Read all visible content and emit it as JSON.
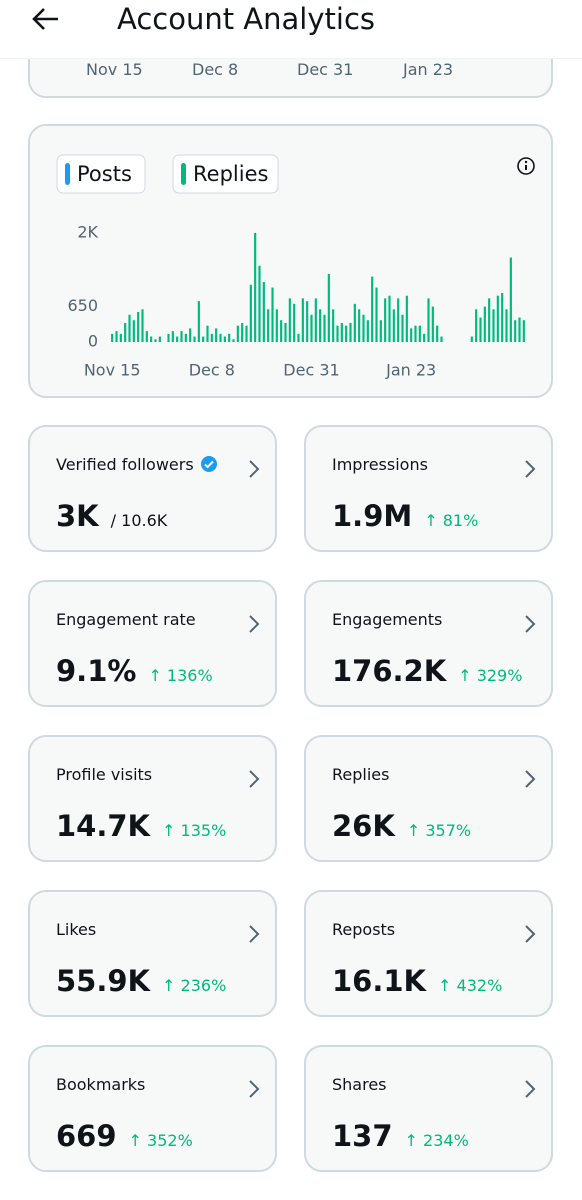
{
  "header": {
    "title": "Account Analytics"
  },
  "previous_chart": {
    "x_labels": [
      "Nov 15",
      "Dec 8",
      "Dec 31",
      "Jan 23"
    ]
  },
  "chart_data": {
    "type": "bar",
    "stacked": true,
    "categories": [
      "Nov 15",
      null,
      null,
      null,
      null,
      null,
      null,
      null,
      null,
      null,
      null,
      null,
      null,
      null,
      null,
      null,
      null,
      null,
      null,
      null,
      null,
      null,
      null,
      "Dec 8",
      null,
      null,
      null,
      null,
      null,
      null,
      null,
      null,
      null,
      null,
      null,
      null,
      null,
      null,
      null,
      null,
      null,
      null,
      null,
      null,
      null,
      null,
      "Dec 31",
      null,
      null,
      null,
      null,
      null,
      null,
      null,
      null,
      null,
      null,
      null,
      null,
      null,
      null,
      null,
      null,
      null,
      null,
      null,
      null,
      null,
      null,
      "Jan 23",
      null,
      null,
      null,
      null,
      null,
      null,
      null,
      null,
      null,
      null,
      null,
      null,
      null,
      null,
      null,
      null,
      null,
      null,
      null,
      null,
      null,
      null,
      null,
      null,
      null,
      null
    ],
    "series": [
      {
        "name": "Posts",
        "color": "#1d9bf0",
        "values": [
          0,
          0,
          0,
          0,
          0,
          0,
          0,
          0,
          0,
          0,
          0,
          0,
          0,
          0,
          0,
          0,
          0,
          0,
          0,
          0,
          0,
          0,
          0,
          0,
          0,
          0,
          0,
          0,
          0,
          0,
          0,
          0,
          0,
          0,
          0,
          0,
          0,
          0,
          0,
          0,
          0,
          0,
          0,
          0,
          0,
          0,
          0,
          0,
          0,
          0,
          0,
          0,
          0,
          0,
          0,
          0,
          0,
          0,
          0,
          0,
          0,
          0,
          0,
          0,
          0,
          0,
          0,
          0,
          0,
          0,
          0,
          0,
          0,
          0,
          0,
          0,
          0,
          0,
          0,
          0,
          0,
          0,
          0,
          0,
          0,
          0,
          0,
          0,
          0,
          0,
          0,
          0,
          0,
          0,
          0,
          0
        ]
      },
      {
        "name": "Replies",
        "color": "#00ba7c",
        "values": [
          150,
          200,
          150,
          350,
          500,
          400,
          550,
          600,
          200,
          100,
          50,
          100,
          0,
          150,
          200,
          100,
          200,
          150,
          250,
          100,
          750,
          100,
          300,
          150,
          250,
          150,
          100,
          150,
          50,
          300,
          350,
          300,
          1050,
          2000,
          1400,
          1100,
          600,
          1000,
          600,
          400,
          350,
          800,
          700,
          150,
          800,
          750,
          500,
          800,
          600,
          500,
          1250,
          600,
          300,
          350,
          300,
          350,
          700,
          600,
          500,
          400,
          1200,
          1000,
          400,
          800,
          850,
          600,
          800,
          500,
          850,
          250,
          300,
          300,
          150,
          800,
          650,
          300,
          100,
          0,
          0,
          0,
          0,
          0,
          0,
          100,
          600,
          450,
          650,
          800,
          600,
          850,
          900,
          600,
          1550,
          400,
          450,
          400
        ]
      }
    ],
    "ylim": [
      0,
      2000
    ],
    "yticks": [
      0,
      650,
      {
        "value": 2000,
        "label": "2K"
      }
    ]
  },
  "metrics": [
    {
      "label": "Verified followers",
      "value": "3K",
      "total": "/ 10.6K"
    },
    {
      "label": "Impressions",
      "value": "1.9M",
      "change": "↑ 81%"
    },
    {
      "label": "Engagement rate",
      "value": "9.1%",
      "change": "↑ 136%"
    },
    {
      "label": "Engagements",
      "value": "176.2K",
      "change": "↑ 329%"
    },
    {
      "label": "Profile visits",
      "value": "14.7K",
      "change": "↑ 135%"
    },
    {
      "label": "Replies",
      "value": "26K",
      "change": "↑ 357%"
    },
    {
      "label": "Likes",
      "value": "55.9K",
      "change": "↑ 236%"
    },
    {
      "label": "Reposts",
      "value": "16.1K",
      "change": "↑ 432%"
    },
    {
      "label": "Bookmarks",
      "value": "669",
      "change": "↑ 352%"
    },
    {
      "label": "Shares",
      "value": "137",
      "change": "↑ 234%"
    }
  ]
}
